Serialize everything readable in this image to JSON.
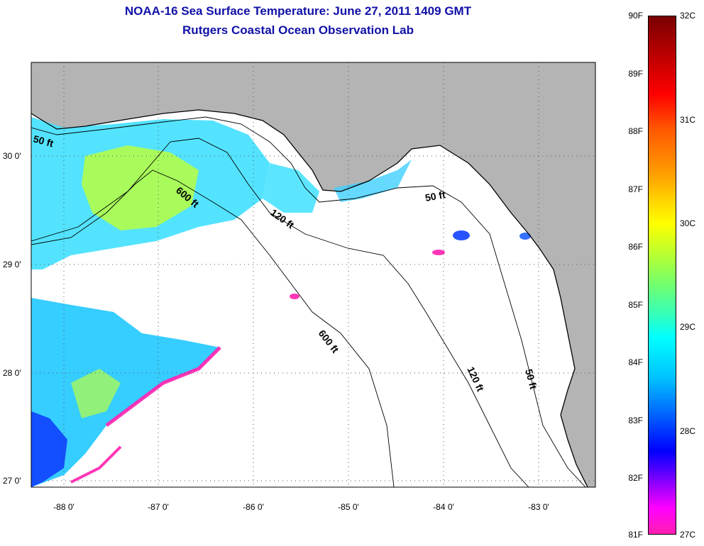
{
  "title": {
    "line1": "NOAA-16 Sea Surface Temperature:  June 27, 2011 1409 GMT",
    "line2": "Rutgers Coastal Ocean Observation Lab"
  },
  "map": {
    "lat_ticks": [
      "30 0'",
      "29 0'",
      "28 0'",
      "27 0'"
    ],
    "lon_ticks": [
      "-88 0'",
      "-87 0'",
      "-86 0'",
      "-85 0'",
      "-84 0'",
      "-83 0'"
    ],
    "contour_labels": [
      "50 ft",
      "600 ft",
      "120 ft",
      "50 ft",
      "600 ft",
      "120 ft",
      "50 ft"
    ],
    "colors": {
      "land": "#b4b4b4",
      "ocean_cloud": "#ffffff",
      "warm": "#b8ff40",
      "cool": "#20d0ff",
      "cold": "#1040ff",
      "coldest": "#ff20b0"
    }
  },
  "colorbar": {
    "fahrenheit": [
      "90F",
      "89F",
      "88F",
      "87F",
      "86F",
      "85F",
      "84F",
      "83F",
      "82F",
      "81F"
    ],
    "celsius": [
      "32C",
      "31C",
      "30C",
      "29C",
      "28C",
      "27C"
    ]
  }
}
